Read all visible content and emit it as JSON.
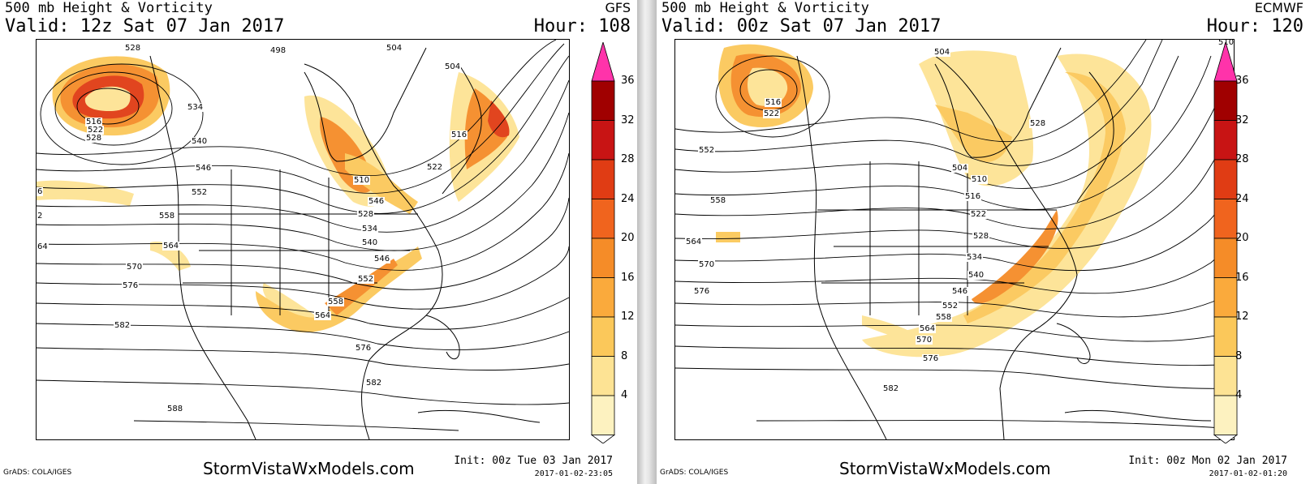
{
  "left": {
    "line1": "500 mb Height & Vorticity",
    "line2": "Valid: 12z Sat 07 Jan 2017",
    "model": "GFS",
    "hour": "Hour: 108",
    "credit": "GrADS: COLA/IGES",
    "brand": "StormVistaWxModels.com",
    "init": "Init: 00z Tue 03 Jan 2017",
    "stamp": "2017-01-02-23:05",
    "contour_labels": [
      "528",
      "498",
      "504",
      "504",
      "534",
      "516",
      "522",
      "528",
      "540",
      "546",
      "510",
      "516",
      "552",
      "528",
      "534",
      "540",
      "558",
      "564",
      "546",
      "552",
      "570",
      "558",
      "576",
      "564",
      "582",
      "576",
      "582",
      "588",
      "522",
      "546",
      "6",
      "2",
      "64"
    ]
  },
  "right": {
    "line1": "500 mb Height & Vorticity",
    "line2": "Valid: 00z Sat 07 Jan 2017",
    "model": "ECMWF",
    "hour": "Hour: 120",
    "credit": "GrADS: COLA/IGES",
    "brand": "StormVistaWxModels.com",
    "init": "Init: 00z Mon 02 Jan 2017",
    "stamp": "2017-01-02-01:20",
    "contour_labels": [
      "510",
      "504",
      "516",
      "522",
      "528",
      "552",
      "558",
      "564",
      "570",
      "576",
      "504",
      "510",
      "516",
      "522",
      "528",
      "534",
      "540",
      "546",
      "552",
      "558",
      "564",
      "570",
      "576",
      "582"
    ]
  },
  "colorbar": {
    "labels": [
      "36",
      "32",
      "28",
      "24",
      "20",
      "16",
      "12",
      "8",
      "4"
    ],
    "colors": [
      "#ff33aa",
      "#a00000",
      "#c81414",
      "#e03c14",
      "#f0641e",
      "#f58c28",
      "#faaa3c",
      "#fbc85a",
      "#fde394",
      "#fdf2c0"
    ]
  }
}
